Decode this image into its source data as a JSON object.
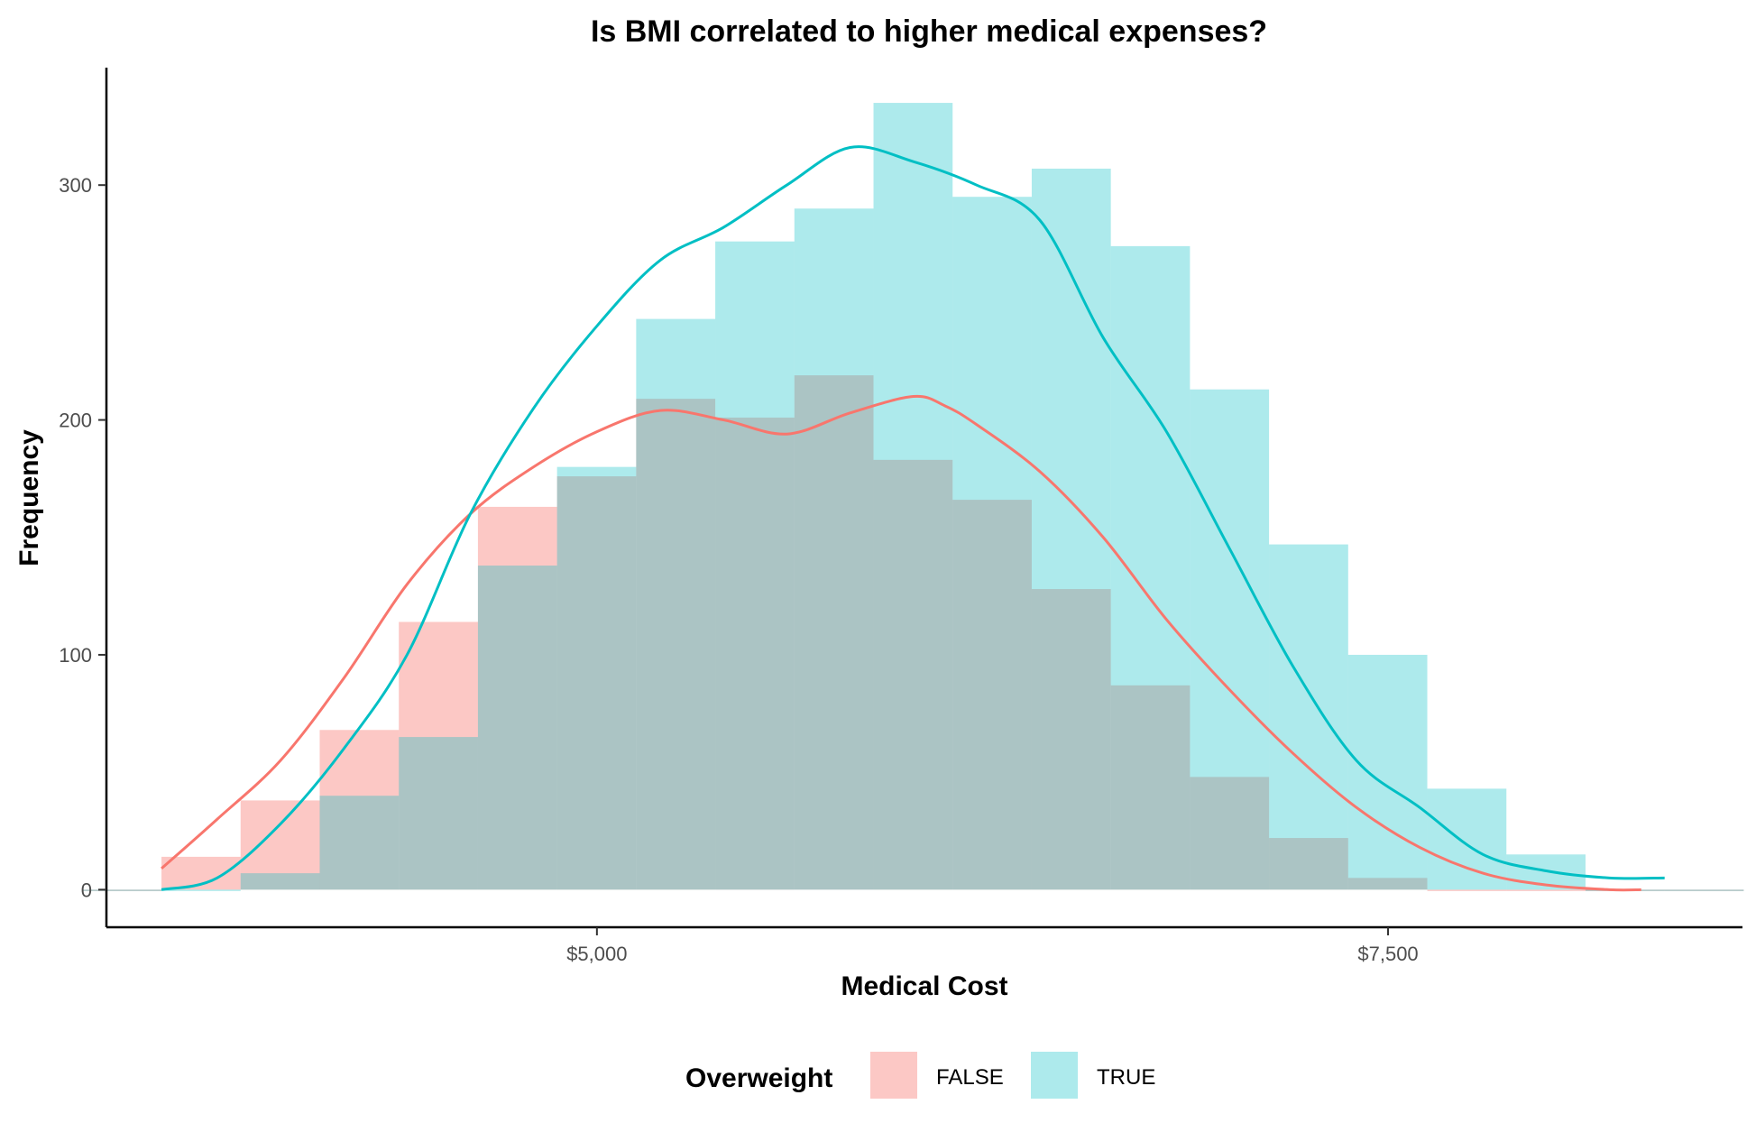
{
  "chart_data": {
    "type": "bar",
    "title": "Is BMI correlated to higher medical expenses?",
    "xlabel": "Medical Cost",
    "ylabel": "Frequency",
    "x_ticks": [
      {
        "value": 5000,
        "label": "$5,000"
      },
      {
        "value": 7500,
        "label": "$7,500"
      }
    ],
    "y_ticks": [
      {
        "value": 0,
        "label": "0"
      },
      {
        "value": 100,
        "label": "100"
      },
      {
        "value": 200,
        "label": "200"
      },
      {
        "value": 300,
        "label": "300"
      }
    ],
    "xlim": [
      3450,
      8620
    ],
    "ylim": [
      -16,
      350
    ],
    "grid": false,
    "legend_placement": "bottom",
    "legend_title": "Overweight",
    "bin_edges": [
      3374,
      3624,
      3874,
      4124,
      4374,
      4624,
      4874,
      5124,
      5374,
      5624,
      5874,
      6124,
      6374,
      6624,
      6874,
      7124,
      7374,
      7624,
      7874,
      8124,
      8374,
      8624
    ],
    "series": [
      {
        "name": "FALSE",
        "color": "#F8766D",
        "counts": [
          0,
          14,
          38,
          68,
          114,
          163,
          176,
          209,
          201,
          219,
          183,
          166,
          128,
          87,
          48,
          22,
          5,
          0,
          0,
          0,
          0
        ],
        "density_x": [
          3624,
          3800,
          4000,
          4200,
          4400,
          4600,
          4800,
          5000,
          5200,
          5400,
          5600,
          5800,
          6000,
          6100,
          6200,
          6400,
          6600,
          6800,
          7000,
          7200,
          7400,
          7600,
          7800,
          8000,
          8200,
          8300
        ],
        "density_y": [
          9,
          30,
          55,
          90,
          130,
          160,
          180,
          195,
          204,
          200,
          194,
          203,
          210,
          206,
          198,
          178,
          150,
          115,
          85,
          58,
          35,
          18,
          7,
          2,
          0,
          0
        ]
      },
      {
        "name": "TRUE",
        "color": "#00BFC4",
        "counts": [
          0,
          0,
          7,
          40,
          65,
          138,
          180,
          243,
          276,
          290,
          335,
          295,
          307,
          274,
          213,
          147,
          100,
          43,
          15,
          0,
          0
        ],
        "density_x": [
          3624,
          3800,
          4000,
          4200,
          4400,
          4600,
          4800,
          5000,
          5200,
          5400,
          5600,
          5800,
          6000,
          6200,
          6400,
          6600,
          6800,
          7000,
          7200,
          7400,
          7600,
          7800,
          8000,
          8200,
          8374
        ],
        "density_y": [
          0,
          5,
          28,
          60,
          100,
          160,
          205,
          240,
          268,
          282,
          300,
          316,
          310,
          300,
          285,
          235,
          195,
          145,
          95,
          55,
          35,
          15,
          8,
          5,
          5
        ]
      }
    ]
  }
}
